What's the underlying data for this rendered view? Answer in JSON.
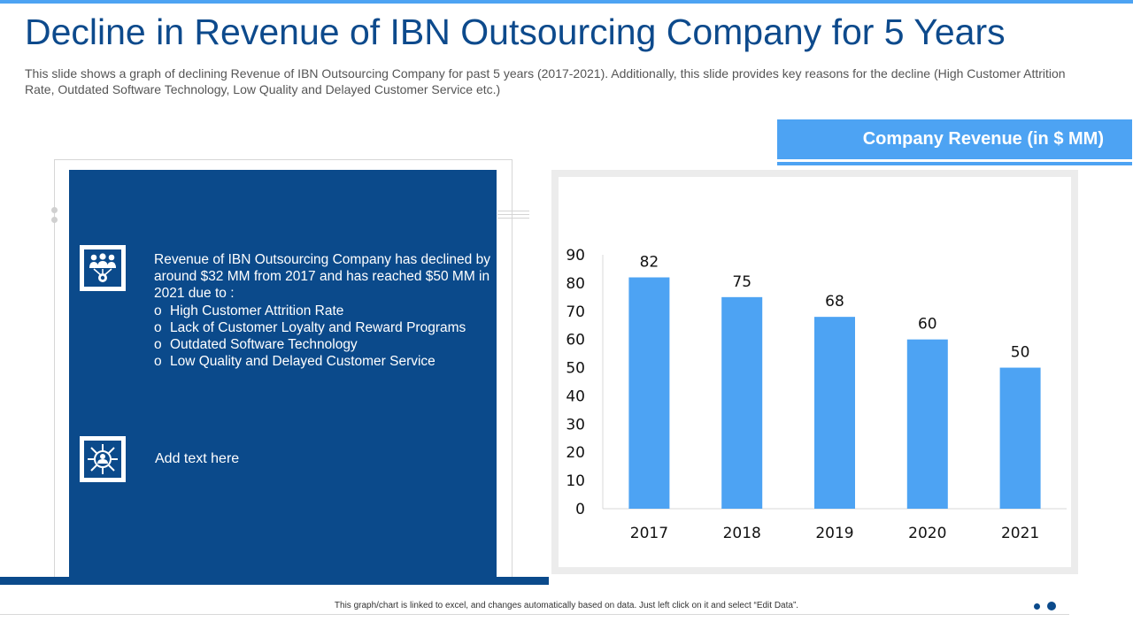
{
  "slide": {
    "title": "Decline in Revenue of IBN Outsourcing Company for 5 Years",
    "subtitle": "This slide shows a graph of declining Revenue of IBN Outsourcing Company for past 5 years (2017-2021). Additionally,  this slide provides key reasons for the decline (High Customer Attrition  Rate, Outdated Software Technology, Low Quality and Delayed Customer Service etc.)",
    "footer_note": "This graph/chart is linked to excel, and changes automatically based on data. Just left click on it and select “Edit Data”."
  },
  "panel": {
    "intro": "Revenue  of IBN Outsourcing  Company has declined by around $32 MM from 2017 and has reached $50 MM in 2021 due to :",
    "bullet_mark": "o",
    "bullets": [
      "High Customer Attrition Rate",
      "Lack of Customer Loyalty  and Reward Programs",
      "Outdated Software Technology",
      "Low Quality  and Delayed Customer Service"
    ],
    "second_text": "Add text here",
    "icons": [
      "team-network-icon",
      "user-hub-icon"
    ]
  },
  "colors": {
    "title": "#0d4a8c",
    "panel": "#0b4a8b",
    "accent": "#4da3f3",
    "bar": "#4da3f3"
  },
  "chart_data": {
    "type": "bar",
    "title": "Company Revenue (in $ MM)",
    "categories": [
      "2017",
      "2018",
      "2019",
      "2020",
      "2021"
    ],
    "values": [
      82,
      75,
      68,
      60,
      50
    ],
    "yticks": [
      0,
      10,
      20,
      30,
      40,
      50,
      60,
      70,
      80,
      90
    ],
    "ylim": [
      0,
      90
    ],
    "xlabel": "",
    "ylabel": "",
    "grid": false,
    "data_labels": true
  }
}
